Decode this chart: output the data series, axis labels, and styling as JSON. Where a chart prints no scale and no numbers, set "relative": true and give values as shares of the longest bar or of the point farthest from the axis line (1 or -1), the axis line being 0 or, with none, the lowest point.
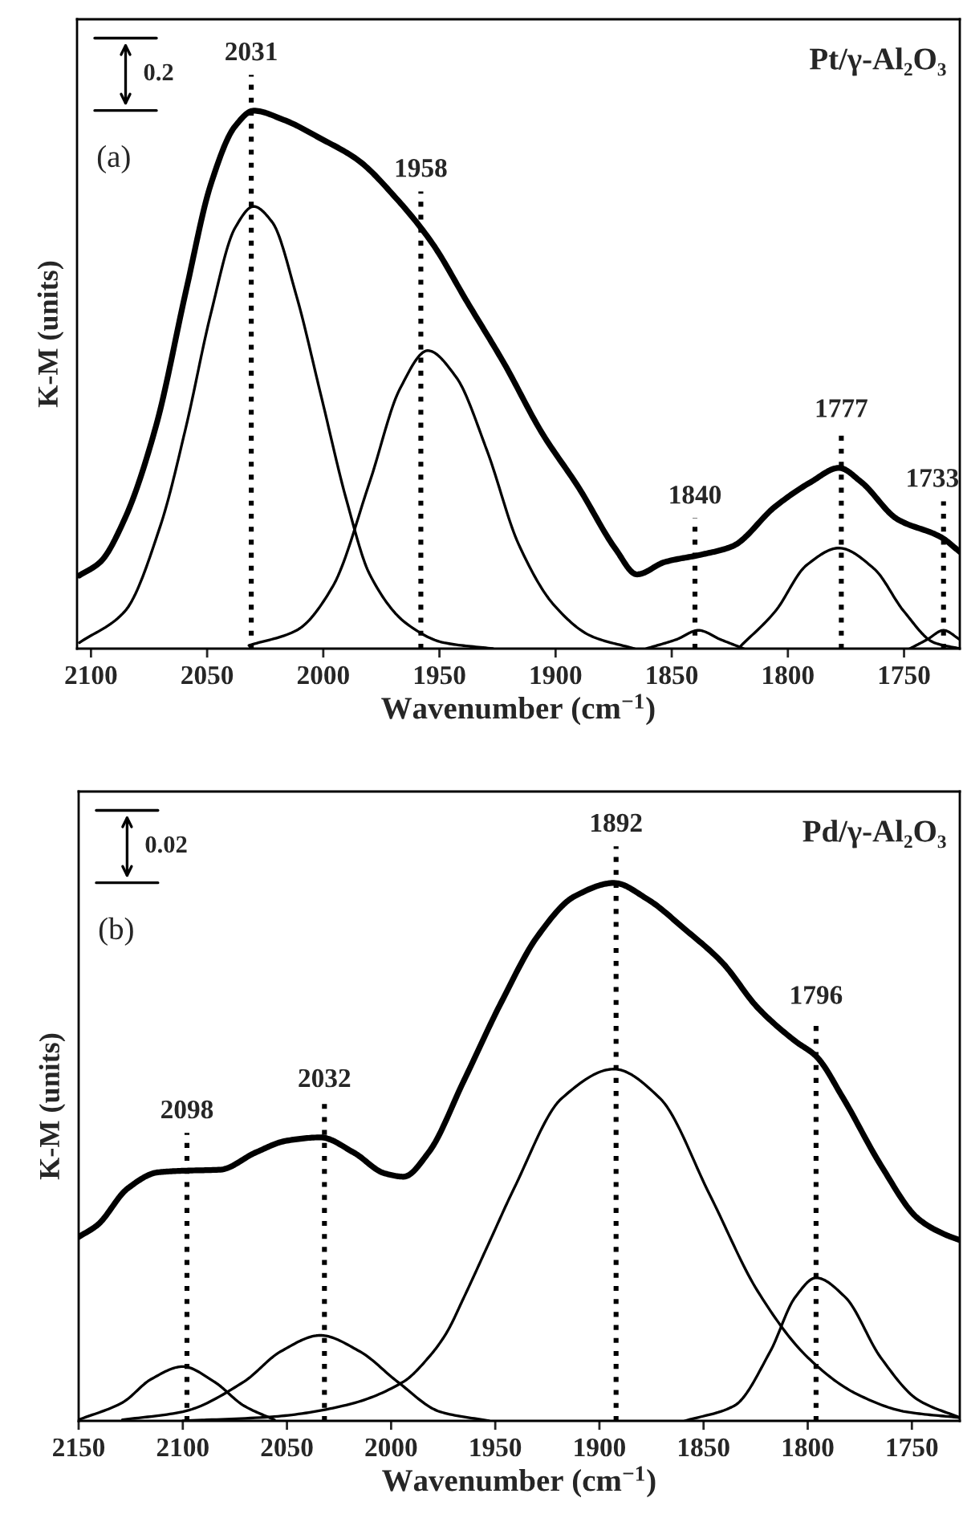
{
  "chart_data": [
    {
      "type": "line",
      "title": "Pt/γ-Al₂O₃",
      "xlabel": "Wavenumber (cm$^{−1}$)",
      "ylabel": "K-M (units)",
      "relative": true,
      "xlim": [
        2106,
        1726
      ],
      "xticks": [
        2100,
        2050,
        2000,
        1950,
        1900,
        1850,
        1800,
        1750
      ],
      "grid": false,
      "legend": false,
      "line_style": "solid",
      "marker": "none",
      "annotations": [
        "(a)",
        "0.2"
      ],
      "ref_lines": [
        {
          "axis": "x",
          "value": 2031,
          "label": "2031",
          "line_style": "dotted",
          "color": "#000000"
        },
        {
          "axis": "x",
          "value": 1958,
          "label": "1958",
          "line_style": "dotted",
          "color": "#000000"
        },
        {
          "axis": "x",
          "value": 1840,
          "label": "1840",
          "line_style": "dotted",
          "color": "#000000"
        },
        {
          "axis": "x",
          "value": 1777,
          "label": "1777",
          "line_style": "dotted",
          "color": "#000000"
        },
        {
          "axis": "x",
          "value": 1733,
          "label": "1733",
          "line_style": "dotted",
          "color": "#000000"
        }
      ],
      "series": [
        {
          "color": "#000000",
          "x": [
            2105,
            2096,
            2085.5,
            2072,
            2059,
            2048.5,
            2038,
            2030,
            2017,
            2001,
            1985,
            1969,
            1953,
            1938,
            1922,
            1906,
            1890,
            1874,
            1865,
            1853,
            1837,
            1824,
            1805.5,
            1790,
            1778,
            1768.5,
            1753,
            1734,
            1726
          ],
          "values": [
            0.136,
            0.161,
            0.241,
            0.414,
            0.667,
            0.862,
            0.971,
            1.0,
            0.983,
            0.948,
            0.908,
            0.839,
            0.753,
            0.644,
            0.529,
            0.402,
            0.299,
            0.184,
            0.138,
            0.161,
            0.175,
            0.19,
            0.264,
            0.31,
            0.336,
            0.31,
            0.241,
            0.207,
            0.18
          ]
        },
        {
          "color": "#000000",
          "x": [
            2105,
            2085.5,
            2070,
            2059,
            2048.5,
            2038,
            2030,
            2022,
            2011.5,
            2001,
            1990,
            1980,
            1964,
            1948,
            1927
          ],
          "values": [
            0.011,
            0.069,
            0.23,
            0.414,
            0.621,
            0.782,
            0.822,
            0.793,
            0.655,
            0.471,
            0.276,
            0.138,
            0.046,
            0.011,
            0
          ]
        },
        {
          "color": "#000000",
          "x": [
            2032,
            2011.5,
            1996,
            1980,
            1967,
            1955,
            1943,
            1929.5,
            1916,
            1900.5,
            1884.5,
            1866
          ],
          "values": [
            0.006,
            0.034,
            0.115,
            0.31,
            0.483,
            0.554,
            0.506,
            0.368,
            0.195,
            0.08,
            0.023,
            0
          ]
        },
        {
          "color": "#000000",
          "x": [
            1861,
            1848,
            1838.5,
            1829,
            1819
          ],
          "values": [
            0,
            0.017,
            0.034,
            0.017,
            0
          ]
        },
        {
          "color": "#000000",
          "x": [
            1821,
            1805.5,
            1792,
            1778,
            1763,
            1750,
            1737,
            1726
          ],
          "values": [
            0.002,
            0.069,
            0.155,
            0.187,
            0.149,
            0.069,
            0.011,
            0
          ]
        },
        {
          "color": "#000000",
          "x": [
            1747.5,
            1740,
            1733,
            1726
          ],
          "values": [
            0,
            0.017,
            0.034,
            0.017
          ]
        }
      ]
    },
    {
      "type": "line",
      "title": "Pd/γ-Al₂O₃",
      "xlabel": "Wavenumber (cm$^{−1}$)",
      "ylabel": "K-M (units)",
      "relative": true,
      "xlim": [
        2150,
        1727
      ],
      "xticks": [
        2150,
        2100,
        2050,
        2000,
        1950,
        1900,
        1850,
        1800,
        1750
      ],
      "grid": false,
      "legend": false,
      "line_style": "solid",
      "marker": "none",
      "annotations": [
        "(b)",
        "0.02"
      ],
      "ref_lines": [
        {
          "axis": "x",
          "value": 2098,
          "label": "2098",
          "line_style": "dotted",
          "color": "#000000"
        },
        {
          "axis": "x",
          "value": 2032,
          "label": "2032",
          "line_style": "dotted",
          "color": "#000000"
        },
        {
          "axis": "x",
          "value": 1892,
          "label": "1892",
          "line_style": "dotted",
          "color": "#000000"
        },
        {
          "axis": "x",
          "value": 1796,
          "label": "1796",
          "line_style": "dotted",
          "color": "#000000"
        }
      ],
      "series": [
        {
          "color": "#000000",
          "x": [
            2150,
            2141,
            2126.5,
            2112,
            2100,
            2082,
            2065,
            2050,
            2034,
            2018,
            2003,
            1994,
            1982,
            1965,
            1947,
            1929.5,
            1912,
            1893,
            1877,
            1859,
            1841,
            1824,
            1806,
            1796,
            1783,
            1765,
            1747,
            1735,
            1727
          ],
          "values": [
            0.342,
            0.364,
            0.432,
            0.462,
            0.465,
            0.467,
            0.499,
            0.521,
            0.527,
            0.499,
            0.46,
            0.454,
            0.499,
            0.633,
            0.779,
            0.902,
            0.975,
            1.0,
            0.97,
            0.914,
            0.852,
            0.768,
            0.706,
            0.678,
            0.6,
            0.476,
            0.376,
            0.348,
            0.336
          ]
        },
        {
          "color": "#000000",
          "x": [
            2150,
            2129,
            2115,
            2100,
            2085,
            2070.6,
            2056
          ],
          "values": [
            0.002,
            0.034,
            0.078,
            0.101,
            0.073,
            0.028,
            0.002
          ]
        },
        {
          "color": "#000000",
          "x": [
            2129,
            2100,
            2070.6,
            2053,
            2034,
            2015,
            1997,
            1976.5,
            1953
          ],
          "values": [
            0.002,
            0.017,
            0.073,
            0.129,
            0.159,
            0.129,
            0.073,
            0.017,
            0
          ]
        },
        {
          "color": "#000000",
          "x": [
            2100,
            2056,
            2023,
            1994,
            1982,
            1973.5,
            1965,
            1953,
            1941,
            1918,
            1893,
            1871,
            1847,
            1824,
            1800,
            1776.5,
            1753,
            1727
          ],
          "values": [
            0,
            0.008,
            0.028,
            0.073,
            0.118,
            0.163,
            0.23,
            0.331,
            0.432,
            0.6,
            0.654,
            0.6,
            0.42,
            0.241,
            0.118,
            0.05,
            0.017,
            0.006
          ]
        },
        {
          "color": "#000000",
          "x": [
            1859,
            1835.3,
            1818,
            1806,
            1796,
            1782,
            1765,
            1747,
            1727
          ],
          "values": [
            0,
            0.028,
            0.129,
            0.23,
            0.266,
            0.23,
            0.118,
            0.039,
            0.006
          ]
        }
      ]
    }
  ]
}
